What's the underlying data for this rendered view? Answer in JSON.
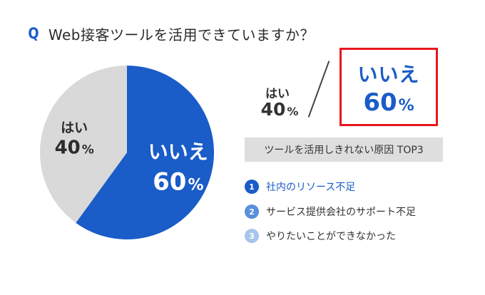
{
  "question": {
    "mark": "Q",
    "text": "Web接客ツールを活用できていますか？"
  },
  "chart_data": {
    "type": "pie",
    "slices": [
      {
        "label": "いいえ",
        "value": 60,
        "display": "60",
        "unit": "%",
        "color": "#1a5cc8",
        "text_color": "#ffffff"
      },
      {
        "label": "はい",
        "value": 40,
        "display": "40",
        "unit": "%",
        "color": "#d9d9d9",
        "text_color": "#2b2b2b"
      }
    ]
  },
  "summary": {
    "yes_label": "はい",
    "yes_value": "40",
    "yes_unit": "%",
    "no_label": "いいえ",
    "no_value": "60",
    "no_unit": "%"
  },
  "top3": {
    "title": "ツールを活用しきれない原因 TOP3",
    "items": [
      {
        "num": "1",
        "text": "社内のリソース不足"
      },
      {
        "num": "2",
        "text": "サービス提供会社のサポート不足"
      },
      {
        "num": "3",
        "text": "やりたいことができなかった"
      }
    ]
  },
  "colors": {
    "accent_blue": "#1a5cc8",
    "highlight_red": "#e8161e",
    "gray_slice": "#d9d9d9"
  }
}
